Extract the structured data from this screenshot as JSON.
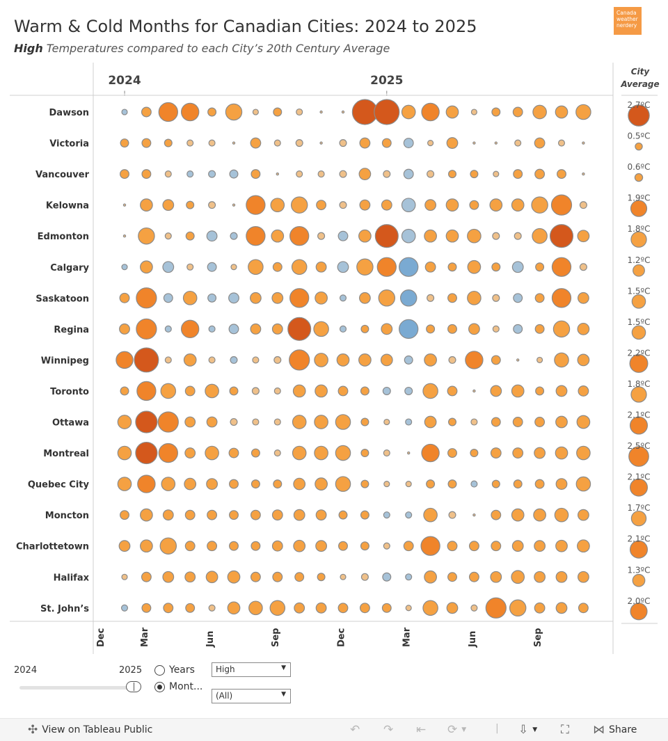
{
  "header": {
    "title": "Warm & Cold Months for Canadian Cities: 2024 to 2025",
    "subtitle_bold": "High",
    "subtitle_rest": " Temperatures compared to each City’s 20th Century Average",
    "logo_line1": "Canada",
    "logo_line2": "weather",
    "logo_line3": "nerdery"
  },
  "chart_data": {
    "type": "bubble-matrix",
    "title": "Warm & Cold Months for Canadian Cities: 2024 to 2025",
    "year_labels": [
      "2024",
      "2025"
    ],
    "year_marker": "!",
    "side_header": [
      "City",
      "Average"
    ],
    "x_tick_labels": [
      {
        "label": "Dec",
        "index": 0
      },
      {
        "label": "Mar",
        "index": 2
      },
      {
        "label": "Jun",
        "index": 5
      },
      {
        "label": "Sep",
        "index": 8
      },
      {
        "label": "Dec",
        "index": 11
      },
      {
        "label": "Mar",
        "index": 14
      },
      {
        "label": "Jun",
        "index": 17
      },
      {
        "label": "Sep",
        "index": 20
      }
    ],
    "month_count": 22,
    "units": "°C anomaly (approximate)",
    "cities": [
      {
        "name": "Dawson",
        "average": "2.7ºC",
        "avg_value": 2.7,
        "values": [
          -0.2,
          0.8,
          2.2,
          2.0,
          0.6,
          1.8,
          0.2,
          0.6,
          0.3,
          0.1,
          0.1,
          3.2,
          3.8,
          1.4,
          2.0,
          1.2,
          0.2,
          0.6,
          0.8,
          1.4,
          1.2,
          1.6
        ]
      },
      {
        "name": "Victoria",
        "average": "0.5ºC",
        "avg_value": 0.5,
        "values": [
          0.6,
          0.7,
          0.5,
          0.3,
          0.3,
          0.1,
          0.9,
          0.3,
          0.4,
          0.1,
          0.4,
          0.9,
          0.7,
          -0.8,
          0.2,
          1.0,
          0.1,
          0.1,
          0.3,
          0.9,
          0.3,
          0.1
        ]
      },
      {
        "name": "Vancouver",
        "average": "0.6ºC",
        "avg_value": 0.6,
        "values": [
          0.7,
          0.7,
          0.3,
          -0.3,
          -0.4,
          -0.6,
          0.7,
          0.1,
          0.3,
          0.3,
          0.4,
          1.1,
          0.4,
          -0.8,
          0.4,
          0.5,
          0.5,
          0.2,
          0.7,
          0.8,
          0.7,
          0.1
        ]
      },
      {
        "name": "Kelowna",
        "average": "1.9ºC",
        "avg_value": 1.9,
        "values": [
          0.1,
          1.2,
          1.0,
          0.5,
          0.4,
          0.1,
          2.2,
          1.4,
          1.8,
          0.8,
          0.4,
          0.9,
          0.9,
          -1.4,
          1.0,
          1.2,
          0.7,
          1.2,
          1.2,
          1.8,
          2.4,
          0.4
        ]
      },
      {
        "name": "Edmonton",
        "average": "1.8ºC",
        "avg_value": 1.8,
        "values": [
          0.1,
          1.8,
          0.3,
          0.6,
          -0.9,
          -0.4,
          2.2,
          1.2,
          2.2,
          0.4,
          -0.8,
          1.2,
          2.8,
          -1.4,
          1.2,
          1.2,
          1.4,
          0.4,
          0.4,
          1.6,
          2.8,
          1.1
        ]
      },
      {
        "name": "Calgary",
        "average": "1.2ºC",
        "avg_value": 1.2,
        "values": [
          -0.2,
          1.2,
          -1.0,
          0.3,
          -0.7,
          0.2,
          1.6,
          0.7,
          1.6,
          0.9,
          -1.0,
          1.8,
          2.2,
          -2.2,
          0.9,
          0.6,
          1.3,
          0.6,
          -1.0,
          0.6,
          2.2,
          0.4
        ]
      },
      {
        "name": "Saskatoon",
        "average": "1.5ºC",
        "avg_value": 1.5,
        "values": [
          0.8,
          2.4,
          -0.7,
          1.4,
          -0.6,
          -0.9,
          1.0,
          1.0,
          2.2,
          1.2,
          -0.3,
          1.0,
          1.8,
          -1.8,
          0.4,
          0.7,
          1.4,
          0.4,
          -0.7,
          0.7,
          2.2,
          1.0
        ]
      },
      {
        "name": "Regina",
        "average": "1.5ºC",
        "avg_value": 1.5,
        "values": [
          0.9,
          2.4,
          -0.3,
          2.0,
          -0.3,
          -0.8,
          0.9,
          0.9,
          2.8,
          1.6,
          -0.3,
          0.5,
          1.0,
          -2.2,
          0.6,
          0.7,
          1.0,
          0.3,
          -0.7,
          0.7,
          1.8,
          1.1
        ]
      },
      {
        "name": "Winnipeg",
        "average": "2.2ºC",
        "avg_value": 2.2,
        "values": [
          1.9,
          3.0,
          0.3,
          1.2,
          0.3,
          -0.4,
          0.3,
          0.4,
          2.4,
          1.4,
          1.2,
          1.2,
          1.1,
          -0.6,
          1.2,
          0.4,
          2.0,
          0.7,
          0.1,
          0.2,
          1.5,
          1.1
        ]
      },
      {
        "name": "Toronto",
        "average": "1.8ºC",
        "avg_value": 1.8,
        "values": [
          0.6,
          2.2,
          1.6,
          0.8,
          1.4,
          0.6,
          0.4,
          0.3,
          1.2,
          1.2,
          0.8,
          0.6,
          -0.5,
          -0.5,
          1.6,
          0.8,
          0.1,
          1.0,
          1.2,
          0.6,
          1.0,
          0.9
        ]
      },
      {
        "name": "Ottawa",
        "average": "2.1ºC",
        "avg_value": 2.1,
        "values": [
          1.4,
          2.6,
          2.4,
          0.9,
          0.9,
          0.4,
          0.3,
          0.3,
          1.4,
          1.4,
          1.6,
          0.5,
          0.2,
          -0.3,
          1.1,
          0.5,
          0.3,
          0.7,
          0.8,
          0.8,
          1.1,
          1.3
        ]
      },
      {
        "name": "Montreal",
        "average": "2.5ºC",
        "avg_value": 2.5,
        "values": [
          1.4,
          2.6,
          2.2,
          0.9,
          1.4,
          0.8,
          0.6,
          0.3,
          1.4,
          1.4,
          1.6,
          0.5,
          0.3,
          0.05,
          2.0,
          0.7,
          0.5,
          0.9,
          0.9,
          1.0,
          1.2,
          1.4
        ]
      },
      {
        "name": "Quebec City",
        "average": "2.1ºC",
        "avg_value": 2.1,
        "values": [
          1.4,
          2.0,
          1.4,
          1.1,
          1.0,
          0.7,
          0.6,
          0.6,
          1.1,
          1.2,
          1.6,
          0.5,
          0.2,
          0.2,
          0.6,
          0.6,
          -0.3,
          0.5,
          0.6,
          0.7,
          1.0,
          1.5
        ]
      },
      {
        "name": "Moncton",
        "average": "1.7ºC",
        "avg_value": 1.7,
        "values": [
          0.7,
          1.2,
          0.9,
          0.8,
          0.8,
          0.7,
          0.8,
          0.9,
          1.0,
          0.9,
          0.6,
          0.6,
          -0.3,
          -0.3,
          1.4,
          0.4,
          0.1,
          0.8,
          1.2,
          1.2,
          1.4,
          1.0
        ]
      },
      {
        "name": "Charlottetown",
        "average": "2.1ºC",
        "avg_value": 2.1,
        "values": [
          1.0,
          1.2,
          1.8,
          0.8,
          0.8,
          0.7,
          0.7,
          0.9,
          1.1,
          1.0,
          0.7,
          0.6,
          0.3,
          0.8,
          2.2,
          0.8,
          0.8,
          0.8,
          1.0,
          1.0,
          1.1,
          1.2
        ]
      },
      {
        "name": "Halifax",
        "average": "1.3ºC",
        "avg_value": 1.3,
        "values": [
          0.2,
          0.8,
          1.0,
          0.9,
          1.1,
          1.2,
          0.8,
          0.8,
          0.7,
          0.5,
          0.2,
          0.4,
          -0.6,
          -0.3,
          1.2,
          0.7,
          0.8,
          1.0,
          1.3,
          1.0,
          1.0,
          1.0
        ]
      },
      {
        "name": "St. John’s",
        "average": "2.0ºC",
        "avg_value": 2.0,
        "values": [
          -0.3,
          0.7,
          0.8,
          0.7,
          0.3,
          1.2,
          1.4,
          1.6,
          0.9,
          0.9,
          0.8,
          0.8,
          0.7,
          0.2,
          1.6,
          1.0,
          0.3,
          2.4,
          1.8,
          0.9,
          1.0,
          0.8
        ]
      }
    ]
  },
  "controls": {
    "slider_min": "2024",
    "slider_max": "2025",
    "radio_years": "Years",
    "radio_months": "Mont...",
    "dropdown_metric": "High",
    "dropdown_filter": "(All)"
  },
  "toolbar": {
    "view_label": "View on Tableau Public",
    "share_label": "Share"
  },
  "colors": {
    "warm": "#f5a142",
    "warm_hot": "#f0842a",
    "warm_extreme": "#d4581c",
    "warm_pale": "#efc089",
    "cool": "#7aaad2",
    "cool_pale": "#a6c2d8",
    "bubble_stroke": "#8a8a8a"
  }
}
